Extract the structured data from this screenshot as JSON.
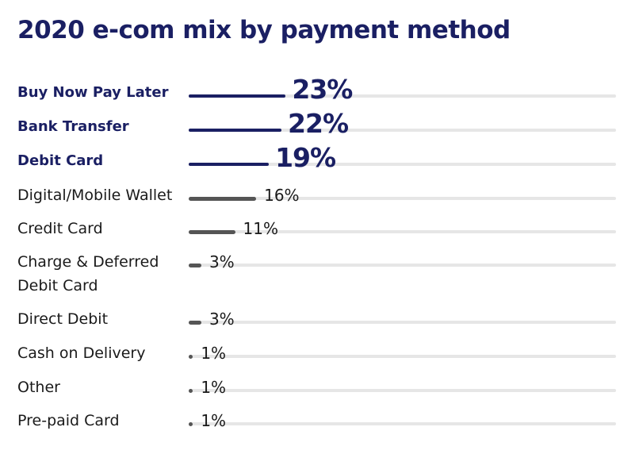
{
  "colors": {
    "highlight": "#1a1f63",
    "normal_bar": "#555555",
    "normal_text": "#1a1a1a",
    "track": "#e6e6e6"
  },
  "chart_data": {
    "type": "bar",
    "orientation": "horizontal",
    "title": "2020 e-com mix by payment method",
    "categories": [
      "Buy Now Pay Later",
      "Bank Transfer",
      "Debit Card",
      "Digital/Mobile Wallet",
      "Credit Card",
      "Charge & Deferred Debit Card",
      "Direct Debit",
      "Cash on Delivery",
      "Other",
      "Pre-paid Card"
    ],
    "values": [
      23,
      22,
      19,
      16,
      11,
      3,
      3,
      1,
      1,
      1
    ],
    "value_labels": [
      "23%",
      "22%",
      "19%",
      "16%",
      "11%",
      "3%",
      "3%",
      "1%",
      "1%",
      "1%"
    ],
    "highlighted": [
      true,
      true,
      true,
      false,
      false,
      false,
      false,
      false,
      false,
      false
    ],
    "unit": "%",
    "xlim": [
      0,
      100
    ],
    "grid": false,
    "legend": "none"
  }
}
